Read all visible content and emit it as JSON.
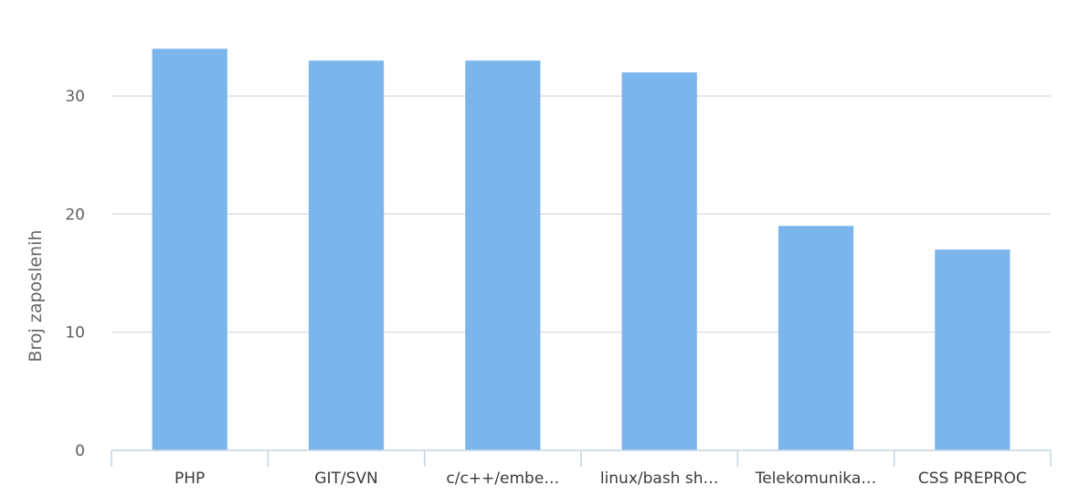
{
  "chart_data": {
    "type": "bar",
    "categories": [
      "PHP",
      "GIT/SVN",
      "c/c++/embe…",
      "linux/bash sh…",
      "Telekomunika…",
      "CSS PREPROC"
    ],
    "values": [
      34,
      33,
      33,
      32,
      19,
      17
    ],
    "ylabel": "Broj zaposlenih",
    "ylim": [
      0,
      35
    ],
    "yticks": [
      0,
      10,
      20,
      30
    ],
    "grid": true,
    "bar_color": "#7cb5ec",
    "legend": "none"
  }
}
